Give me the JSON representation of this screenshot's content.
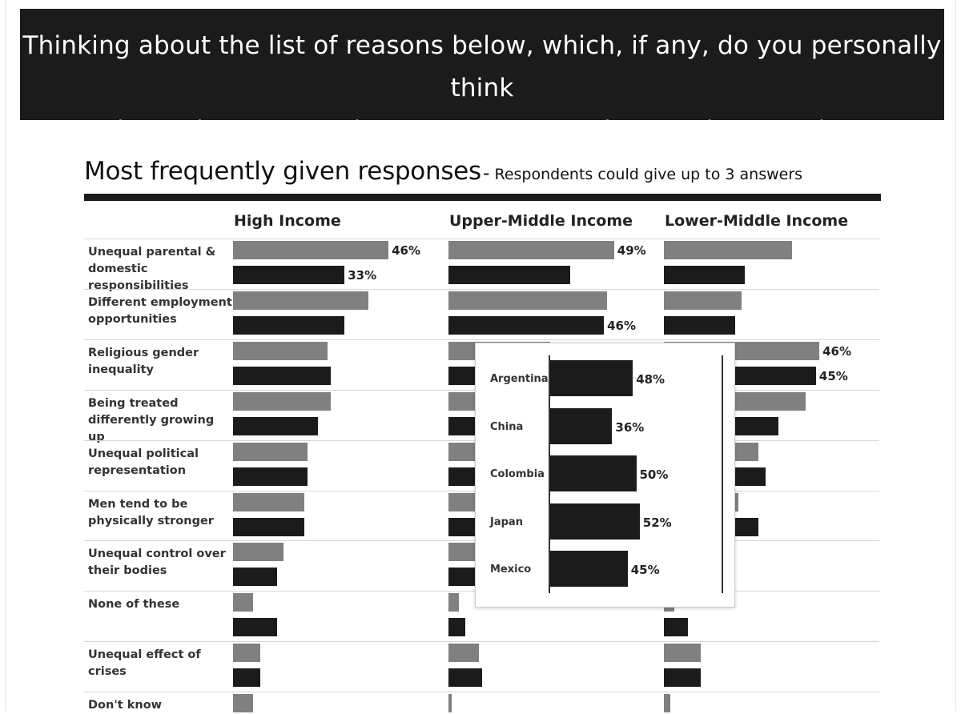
{
  "question": [
    "Thinking about the list of reasons below, which, if any, do you personally think",
    "are the main reasons why women may not be equal to men in your country?"
  ],
  "section": {
    "title": "Most frequently given responses",
    "dash": "-",
    "note": "Respondents could give up to 3 answers"
  },
  "colors": {
    "gray_bar": "#808080",
    "black_bar": "#1b1b1b",
    "banner": "#1b1b1b"
  },
  "chart_data": {
    "type": "bar",
    "orientation": "horizontal",
    "panels": [
      "High Income",
      "Upper-Middle Income",
      "Lower-Middle Income"
    ],
    "categories": [
      "Unequal parental & domestic responsibilities",
      "Different employment opportunities",
      "Religious gender inequality",
      "Being treated differently growing up",
      "Unequal political representation",
      "Men tend to be physically stronger",
      "Unequal control over their bodies",
      "None of these",
      "Unequal effect of crises",
      "Don't know"
    ],
    "values": {
      "High Income": {
        "gray": [
          46,
          40,
          28,
          29,
          22,
          21,
          15,
          6,
          8,
          6
        ],
        "black": [
          33,
          33,
          29,
          25,
          22,
          21,
          13,
          13,
          8,
          null
        ]
      },
      "Upper-Middle Income": {
        "gray": [
          49,
          47,
          30,
          29,
          25,
          25,
          20,
          3,
          9,
          1
        ],
        "black": [
          36,
          46,
          30,
          28,
          25,
          25,
          24,
          5,
          10,
          null
        ]
      },
      "Lower-Middle Income": {
        "gray": [
          38,
          23,
          46,
          42,
          28,
          22,
          17,
          3,
          11,
          2
        ],
        "black": [
          24,
          21,
          45,
          34,
          30,
          28,
          10,
          7,
          11,
          null
        ]
      }
    },
    "labels": [
      {
        "panel": "High Income",
        "row": 0,
        "series": "gray",
        "text": "46%"
      },
      {
        "panel": "High Income",
        "row": 0,
        "series": "black",
        "text": "33%"
      },
      {
        "panel": "Upper-Middle Income",
        "row": 0,
        "series": "gray",
        "text": "49%"
      },
      {
        "panel": "Upper-Middle Income",
        "row": 1,
        "series": "black",
        "text": "46%"
      },
      {
        "panel": "Lower-Middle Income",
        "row": 2,
        "series": "gray",
        "text": "46%"
      },
      {
        "panel": "Lower-Middle Income",
        "row": 2,
        "series": "black",
        "text": "45%"
      }
    ],
    "tooltip": {
      "countries": [
        "Argentina",
        "China",
        "Colombia",
        "Japan",
        "Mexico"
      ],
      "values": [
        48,
        36,
        50,
        52,
        45
      ],
      "value_labels": [
        "48%",
        "36%",
        "50%",
        "52%",
        "45%"
      ]
    }
  }
}
